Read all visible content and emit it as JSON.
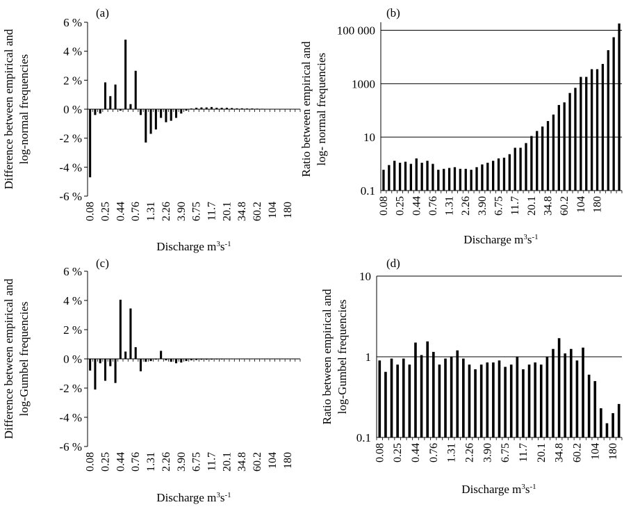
{
  "chart_data": [
    {
      "id": "a",
      "type": "bar",
      "panel_label": "(a)",
      "ylabel_lines": [
        "Difference between empirical and",
        "log-normal frequencies"
      ],
      "xlabel": "Discharge m",
      "xlabel_sup": "3",
      "xlabel_mid": "s",
      "xlabel_sup2": "-1",
      "scale": "linear",
      "ylim": [
        -6,
        6
      ],
      "yticks": [
        -6,
        -4,
        -2,
        0,
        2,
        4,
        6
      ],
      "ytick_labels": [
        "-6 %",
        "-4 %",
        "-2 %",
        "0 %",
        "2 %",
        "4 %",
        "6 %"
      ],
      "gridlines": [],
      "xtick_labels": [
        "0.08",
        "0.25",
        "0.44",
        "0.76",
        "1.31",
        "2.26",
        "3.90",
        "6.75",
        "11.7",
        "20.1",
        "34.8",
        "60.2",
        "104",
        "180"
      ],
      "values": [
        -4.7,
        -0.4,
        -0.3,
        1.85,
        0.9,
        1.7,
        -0.1,
        4.8,
        0.35,
        2.65,
        -0.4,
        -2.3,
        -1.7,
        -1.4,
        -0.6,
        -0.9,
        -0.8,
        -0.6,
        -0.3,
        -0.1,
        0.05,
        0.1,
        0.12,
        0.12,
        0.15,
        0.1,
        0.1,
        0.1,
        0.08,
        0.06,
        0.06,
        0.05,
        0.05,
        0.04,
        0.03,
        0.02,
        0.02,
        0.01,
        0.01,
        0.01,
        0.01,
        0.01
      ]
    },
    {
      "id": "b",
      "type": "bar",
      "panel_label": "(b)",
      "ylabel_lines": [
        "Ratio between empirical and",
        "log- normal frequencies"
      ],
      "xlabel": "Discharge m",
      "xlabel_sup": "3",
      "xlabel_mid": "s",
      "xlabel_sup2": "-1",
      "scale": "log",
      "ylim": [
        0.1,
        200000
      ],
      "yticks": [
        0.1,
        10,
        1000,
        100000
      ],
      "ytick_labels": [
        "0.1",
        "10",
        "1000",
        "100 000"
      ],
      "gridlines": [
        10,
        1000,
        100000
      ],
      "xtick_labels": [
        "0.08",
        "0.25",
        "0.44",
        "0.76",
        "1.31",
        "2.26",
        "3.90",
        "6.75",
        "11.7",
        "20.1",
        "34.8",
        "60.2",
        "104",
        "180"
      ],
      "values": [
        0.6,
        0.9,
        1.3,
        1.1,
        1.2,
        1.0,
        1.6,
        1.1,
        1.3,
        1.0,
        0.6,
        0.65,
        0.7,
        0.75,
        0.65,
        0.65,
        0.6,
        0.75,
        0.95,
        1.1,
        1.3,
        1.6,
        1.7,
        2.3,
        4,
        4,
        6,
        11,
        17,
        25,
        40,
        70,
        160,
        200,
        450,
        700,
        1800,
        1800,
        3500,
        3500,
        5500,
        18000,
        55000,
        180000
      ]
    },
    {
      "id": "c",
      "type": "bar",
      "panel_label": "(c)",
      "ylabel_lines": [
        "Difference between empirical and",
        "log-Gumbel frequencies"
      ],
      "xlabel": "Discharge m",
      "xlabel_sup": "3",
      "xlabel_mid": "s",
      "xlabel_sup2": "-1",
      "scale": "linear",
      "ylim": [
        -6,
        6
      ],
      "yticks": [
        -6,
        -4,
        -2,
        0,
        2,
        4,
        6
      ],
      "ytick_labels": [
        "-6 %",
        "-4 %",
        "-2 %",
        "0 %",
        "2 %",
        "4 %",
        "6 %"
      ],
      "gridlines": [],
      "xtick_labels": [
        "0.08",
        "0.25",
        "0.44",
        "0.76",
        "1.31",
        "2.26",
        "3.90",
        "6.75",
        "11.7",
        "20.1",
        "34.8",
        "60.2",
        "104",
        "180"
      ],
      "values": [
        -0.8,
        -2.1,
        -0.3,
        -1.5,
        -0.5,
        -1.65,
        4.05,
        0.5,
        3.45,
        0.8,
        -0.85,
        -0.2,
        -0.15,
        -0.05,
        0.55,
        -0.1,
        -0.2,
        -0.3,
        -0.25,
        -0.15,
        -0.1,
        -0.08,
        -0.06,
        -0.06,
        -0.05,
        -0.04,
        -0.04,
        -0.03,
        -0.03,
        -0.02,
        -0.02,
        -0.02,
        -0.02,
        -0.01,
        -0.01,
        -0.01,
        -0.01,
        -0.01,
        -0.01,
        -0.01,
        -0.01,
        -0.01
      ]
    },
    {
      "id": "d",
      "type": "bar",
      "panel_label": "(d)",
      "ylabel_lines": [
        "Ratio between empirical and",
        "log-Gumbel frequencies"
      ],
      "xlabel": "Discharge m",
      "xlabel_sup": "3",
      "xlabel_mid": "s",
      "xlabel_sup2": "-1",
      "scale": "log",
      "ylim": [
        0.1,
        10
      ],
      "yticks": [
        0.1,
        1,
        10
      ],
      "ytick_labels": [
        "0.1",
        "1",
        "10"
      ],
      "gridlines": [
        1,
        10
      ],
      "xtick_labels": [
        "0.08",
        "0.25",
        "0.44",
        "0.76",
        "1.31",
        "2.26",
        "3.90",
        "6.75",
        "11.7",
        "20.1",
        "34.8",
        "60.2",
        "104",
        "180"
      ],
      "values": [
        0.9,
        0.65,
        0.95,
        0.8,
        0.95,
        0.8,
        1.5,
        1.05,
        1.55,
        1.15,
        0.8,
        0.95,
        1.0,
        1.2,
        0.95,
        0.8,
        0.7,
        0.8,
        0.85,
        0.85,
        0.9,
        0.75,
        0.8,
        1.0,
        0.7,
        0.8,
        0.85,
        0.8,
        1.0,
        1.25,
        1.7,
        1.1,
        1.25,
        0.9,
        1.3,
        0.6,
        0.5,
        0.23,
        0.15,
        0.2,
        0.26
      ]
    }
  ]
}
